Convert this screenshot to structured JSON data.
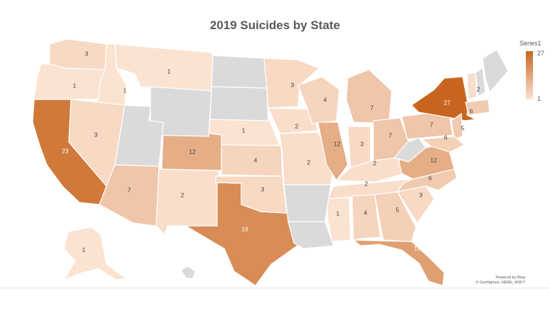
{
  "title": "2019 Suicides by State",
  "legend": {
    "title": "Series1",
    "max": "27",
    "min": "1"
  },
  "credit": {
    "line1": "Powered by Bing",
    "line2": "© GeoNames, HERE, MSFT"
  },
  "colors": {
    "high": "#c8661f",
    "low": "#fbe3d2",
    "nodata": "#dadada",
    "border": "#ffffff"
  },
  "chart_data": {
    "type": "choropleth",
    "title": "2019 Suicides by State",
    "series": "Series1",
    "range": [
      1,
      27
    ],
    "states": [
      {
        "state": "WA",
        "value": 3
      },
      {
        "state": "OR",
        "value": 1
      },
      {
        "state": "CA",
        "value": 23
      },
      {
        "state": "ID",
        "value": 1
      },
      {
        "state": "MT",
        "value": 1
      },
      {
        "state": "NV",
        "value": 3
      },
      {
        "state": "AZ",
        "value": 7
      },
      {
        "state": "NM",
        "value": 2
      },
      {
        "state": "CO",
        "value": 12
      },
      {
        "state": "TX",
        "value": 19
      },
      {
        "state": "NE",
        "value": 1
      },
      {
        "state": "KS",
        "value": 4
      },
      {
        "state": "OK",
        "value": 3
      },
      {
        "state": "MN",
        "value": 3
      },
      {
        "state": "IA",
        "value": 2
      },
      {
        "state": "MO",
        "value": 2
      },
      {
        "state": "WI",
        "value": 4
      },
      {
        "state": "IL",
        "value": 12
      },
      {
        "state": "MI",
        "value": 7
      },
      {
        "state": "IN",
        "value": 3
      },
      {
        "state": "OH",
        "value": 7
      },
      {
        "state": "KY",
        "value": 2
      },
      {
        "state": "TN",
        "value": 2
      },
      {
        "state": "MS",
        "value": 1
      },
      {
        "state": "AL",
        "value": 4
      },
      {
        "state": "GA",
        "value": 5
      },
      {
        "state": "FL",
        "value": 15
      },
      {
        "state": "SC",
        "value": 3
      },
      {
        "state": "NC",
        "value": 6
      },
      {
        "state": "VA",
        "value": 12
      },
      {
        "state": "PA",
        "value": 7
      },
      {
        "state": "NY",
        "value": 27
      },
      {
        "state": "NJ",
        "value": 6
      },
      {
        "state": "MD",
        "value": 5
      },
      {
        "state": "VT",
        "value": 2
      },
      {
        "state": "CT",
        "value": 6
      },
      {
        "state": "AK",
        "value": 1
      },
      {
        "state": "ND",
        "value": null
      },
      {
        "state": "SD",
        "value": null
      },
      {
        "state": "WY",
        "value": null
      },
      {
        "state": "UT",
        "value": null
      },
      {
        "state": "AR",
        "value": null
      },
      {
        "state": "LA",
        "value": null
      },
      {
        "state": "WV",
        "value": null
      },
      {
        "state": "ME",
        "value": null
      },
      {
        "state": "NH",
        "value": null
      },
      {
        "state": "HI",
        "value": null
      }
    ]
  }
}
